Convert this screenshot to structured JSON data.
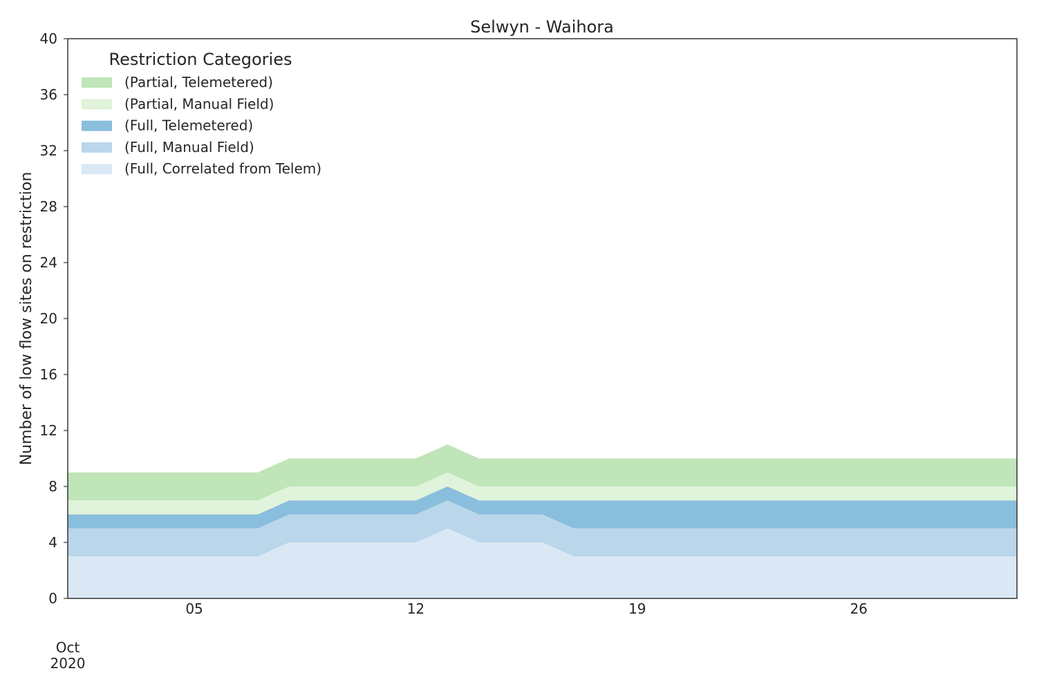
{
  "chart_data": {
    "type": "area",
    "stacked": true,
    "title": "Selwyn - Waihora",
    "xlabel": "",
    "ylabel": "Number of low flow sites on restriction",
    "x": [
      "2020-10-01",
      "2020-10-02",
      "2020-10-03",
      "2020-10-04",
      "2020-10-05",
      "2020-10-06",
      "2020-10-07",
      "2020-10-08",
      "2020-10-09",
      "2020-10-10",
      "2020-10-11",
      "2020-10-12",
      "2020-10-13",
      "2020-10-14",
      "2020-10-15",
      "2020-10-16",
      "2020-10-17",
      "2020-10-18",
      "2020-10-19",
      "2020-10-20",
      "2020-10-21",
      "2020-10-22",
      "2020-10-23",
      "2020-10-24",
      "2020-10-25",
      "2020-10-26",
      "2020-10-27",
      "2020-10-28",
      "2020-10-29",
      "2020-10-30",
      "2020-10-31"
    ],
    "xlim": [
      "2020-10-01",
      "2020-10-31"
    ],
    "x_ticks": [
      {
        "date": "2020-10-05",
        "label": "05"
      },
      {
        "date": "2020-10-12",
        "label": "12"
      },
      {
        "date": "2020-10-19",
        "label": "19"
      },
      {
        "date": "2020-10-26",
        "label": "26"
      }
    ],
    "x_start_label": [
      "Oct",
      "2020"
    ],
    "ylim": [
      0,
      40
    ],
    "y_ticks": [
      0,
      4,
      8,
      12,
      16,
      20,
      24,
      28,
      32,
      36,
      40
    ],
    "grid": false,
    "legend": {
      "title": "Restriction Categories",
      "position": "top-left"
    },
    "series": [
      {
        "name": "(Full, Correlated from Telem)",
        "color": "#dae8f5",
        "values": [
          3,
          3,
          3,
          3,
          3,
          3,
          3,
          4,
          4,
          4,
          4,
          4,
          5,
          4,
          4,
          4,
          3,
          3,
          3,
          3,
          3,
          3,
          3,
          3,
          3,
          3,
          3,
          3,
          3,
          3,
          3
        ]
      },
      {
        "name": "(Full, Manual Field)",
        "color": "#bad6ea",
        "values": [
          2,
          2,
          2,
          2,
          2,
          2,
          2,
          2,
          2,
          2,
          2,
          2,
          2,
          2,
          2,
          2,
          2,
          2,
          2,
          2,
          2,
          2,
          2,
          2,
          2,
          2,
          2,
          2,
          2,
          2,
          2
        ]
      },
      {
        "name": "(Full, Telemetered)",
        "color": "#89bedc",
        "values": [
          1,
          1,
          1,
          1,
          1,
          1,
          1,
          1,
          1,
          1,
          1,
          1,
          1,
          1,
          1,
          1,
          2,
          2,
          2,
          2,
          2,
          2,
          2,
          2,
          2,
          2,
          2,
          2,
          2,
          2,
          2
        ]
      },
      {
        "name": "(Partial, Manual Field)",
        "color": "#e0f3db",
        "values": [
          1,
          1,
          1,
          1,
          1,
          1,
          1,
          1,
          1,
          1,
          1,
          1,
          1,
          1,
          1,
          1,
          1,
          1,
          1,
          1,
          1,
          1,
          1,
          1,
          1,
          1,
          1,
          1,
          1,
          1,
          1
        ]
      },
      {
        "name": "(Partial, Telemetered)",
        "color": "#bfe5b8",
        "values": [
          2,
          2,
          2,
          2,
          2,
          2,
          2,
          2,
          2,
          2,
          2,
          2,
          2,
          2,
          2,
          2,
          2,
          2,
          2,
          2,
          2,
          2,
          2,
          2,
          2,
          2,
          2,
          2,
          2,
          2,
          2
        ]
      }
    ],
    "legend_order": [
      "(Partial, Telemetered)",
      "(Partial, Manual Field)",
      "(Full, Telemetered)",
      "(Full, Manual Field)",
      "(Full, Correlated from Telem)"
    ]
  }
}
